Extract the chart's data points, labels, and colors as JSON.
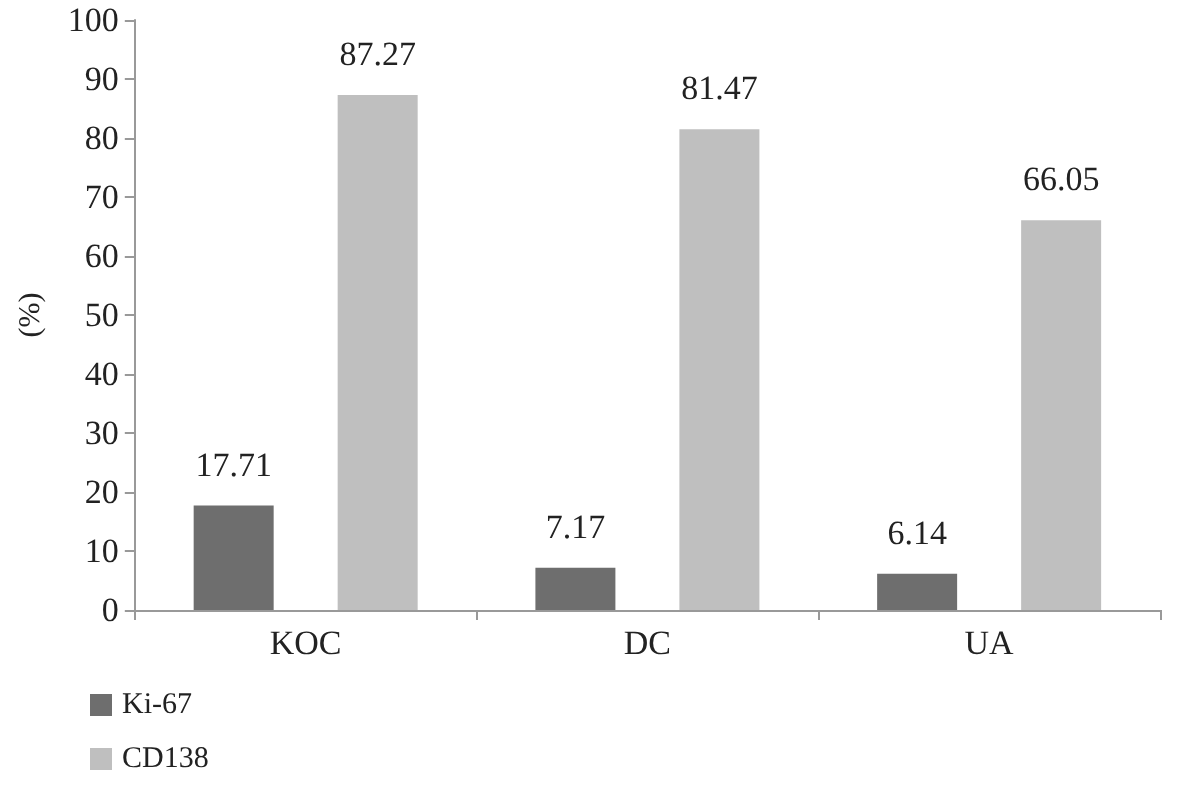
{
  "chart_data": {
    "type": "bar",
    "ylabel": "(%)",
    "categories": [
      "KOC",
      "DC",
      "UA"
    ],
    "series": [
      {
        "name": "Ki-67",
        "color": "#6e6e6e",
        "values": [
          17.71,
          7.17,
          6.14
        ]
      },
      {
        "name": "CD138",
        "color": "#bfbfbf",
        "values": [
          87.27,
          81.47,
          66.05
        ]
      }
    ],
    "ylim": [
      0,
      100
    ],
    "yticks": [
      0,
      10,
      20,
      30,
      40,
      50,
      60,
      70,
      80,
      90,
      100
    ],
    "grid": false,
    "legend": "bottom left",
    "data_labels": true
  }
}
